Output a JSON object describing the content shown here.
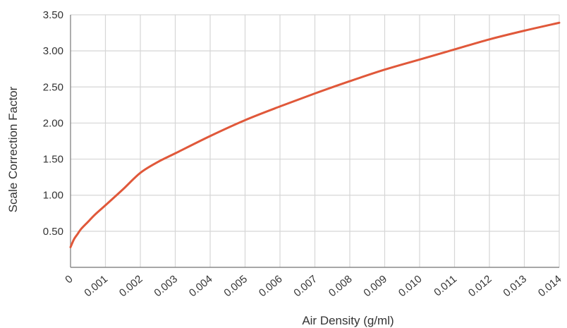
{
  "chart_data": {
    "type": "line",
    "title": "",
    "xlabel": "Air Density (g/ml)",
    "ylabel": "Scale Correction Factor",
    "xlim": [
      0,
      0.014
    ],
    "ylim": [
      0,
      3.5
    ],
    "x_ticks": [
      0,
      0.001,
      0.002,
      0.003,
      0.004,
      0.005,
      0.006,
      0.007,
      0.008,
      0.009,
      0.01,
      0.011,
      0.012,
      0.013,
      0.014
    ],
    "x_tick_labels": [
      "0",
      "0.001",
      "0.002",
      "0.003",
      "0.004",
      "0.005",
      "0.006",
      "0.007",
      "0.008",
      "0.009",
      "0.010",
      "0.011",
      "0.012",
      "0.013",
      "0.014"
    ],
    "y_ticks": [
      0.5,
      1.0,
      1.5,
      2.0,
      2.5,
      3.0,
      3.5
    ],
    "y_tick_labels": [
      "0.50",
      "1.00",
      "1.50",
      "2.00",
      "2.50",
      "3.00",
      "3.50"
    ],
    "grid": true,
    "series": [
      {
        "color": "#e0583a",
        "x": [
          0,
          0.0001,
          0.0002,
          0.0003,
          0.0005,
          0.0007,
          0.001,
          0.0015,
          0.002,
          0.0025,
          0.003,
          0.004,
          0.005,
          0.006,
          0.007,
          0.008,
          0.009,
          0.01,
          0.011,
          0.012,
          0.013,
          0.014
        ],
        "y": [
          0.28,
          0.39,
          0.46,
          0.53,
          0.63,
          0.73,
          0.86,
          1.08,
          1.31,
          1.46,
          1.58,
          1.82,
          2.04,
          2.23,
          2.41,
          2.58,
          2.74,
          2.88,
          3.02,
          3.16,
          3.28,
          3.39
        ]
      }
    ]
  }
}
